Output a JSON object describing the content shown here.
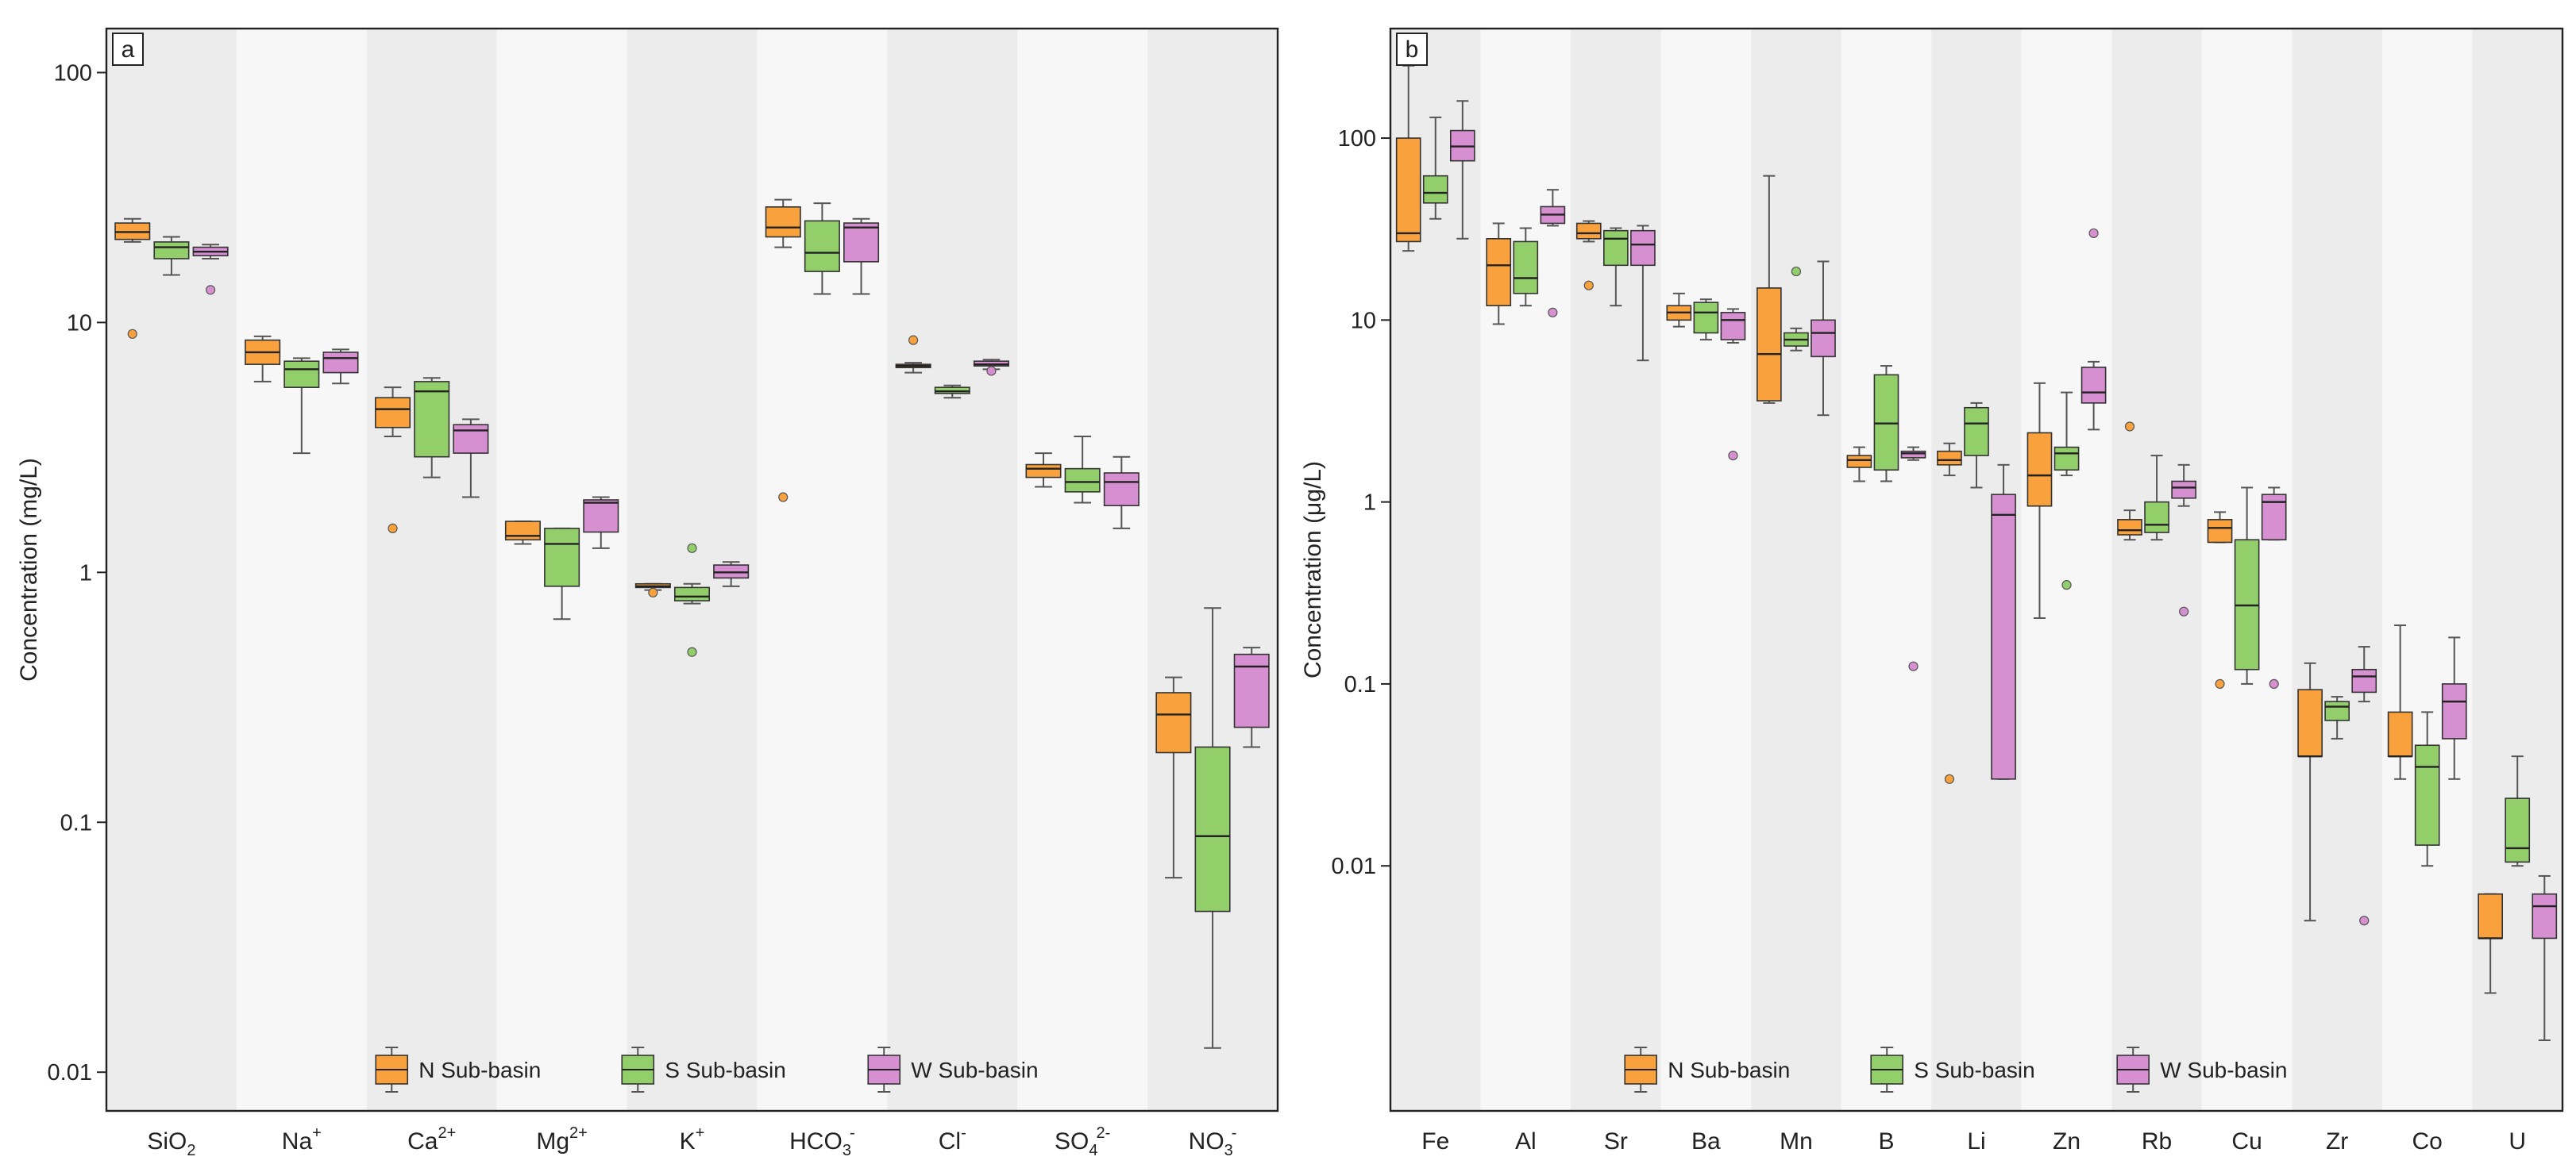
{
  "chart_data": [
    {
      "panel_label": "a",
      "type": "boxplot",
      "scale": "log",
      "ylabel": "Concentration (mg/L)",
      "ylim": [
        0.007,
        150
      ],
      "yticks": [
        {
          "value": 100,
          "label": "100"
        },
        {
          "value": 10,
          "label": "10"
        },
        {
          "value": 1,
          "label": "1"
        },
        {
          "value": 0.1,
          "label": "0.1"
        },
        {
          "value": 0.01,
          "label": "0.01"
        }
      ],
      "categories": [
        {
          "main": "SiO",
          "sub": "2",
          "sup": ""
        },
        {
          "main": "Na",
          "sub": "",
          "sup": "+"
        },
        {
          "main": "Ca",
          "sub": "",
          "sup": "2+"
        },
        {
          "main": "Mg",
          "sub": "",
          "sup": "2+"
        },
        {
          "main": "K",
          "sub": "",
          "sup": "+"
        },
        {
          "main": "HCO",
          "sub": "3",
          "sup": "-"
        },
        {
          "main": "Cl",
          "sub": "",
          "sup": "-"
        },
        {
          "main": "SO",
          "sub": "4",
          "sup": "2-"
        },
        {
          "main": "NO",
          "sub": "3",
          "sup": "-"
        }
      ],
      "series": [
        {
          "name": "N Sub-basin",
          "color": "#f9a13d",
          "boxes": [
            {
              "min": 21,
              "q1": 21.5,
              "median": 23,
              "q3": 25,
              "max": 26,
              "outliers": [
                9
              ]
            },
            {
              "min": 5.8,
              "q1": 6.8,
              "median": 7.6,
              "q3": 8.5,
              "max": 8.8,
              "outliers": []
            },
            {
              "min": 3.5,
              "q1": 3.8,
              "median": 4.5,
              "q3": 5.0,
              "max": 5.5,
              "outliers": [
                1.5
              ]
            },
            {
              "min": 1.3,
              "q1": 1.35,
              "median": 1.4,
              "q3": 1.6,
              "max": 1.6,
              "outliers": []
            },
            {
              "min": 0.85,
              "q1": 0.87,
              "median": 0.88,
              "q3": 0.9,
              "max": 0.9,
              "outliers": [
                0.83
              ]
            },
            {
              "min": 20,
              "q1": 22,
              "median": 24,
              "q3": 29,
              "max": 31,
              "outliers": [
                2
              ]
            },
            {
              "min": 6.3,
              "q1": 6.6,
              "median": 6.7,
              "q3": 6.8,
              "max": 6.9,
              "outliers": [
                8.5
              ]
            },
            {
              "min": 2.2,
              "q1": 2.4,
              "median": 2.6,
              "q3": 2.7,
              "max": 3.0,
              "outliers": []
            },
            {
              "min": 0.06,
              "q1": 0.19,
              "median": 0.27,
              "q3": 0.33,
              "max": 0.38,
              "outliers": []
            }
          ]
        },
        {
          "name": "S Sub-basin",
          "color": "#92cf6b",
          "boxes": [
            {
              "min": 15.5,
              "q1": 18,
              "median": 20,
              "q3": 21,
              "max": 22,
              "outliers": []
            },
            {
              "min": 3.0,
              "q1": 5.5,
              "median": 6.5,
              "q3": 7.0,
              "max": 7.2,
              "outliers": []
            },
            {
              "min": 2.4,
              "q1": 2.9,
              "median": 5.3,
              "q3": 5.8,
              "max": 6.0,
              "outliers": []
            },
            {
              "min": 0.65,
              "q1": 0.88,
              "median": 1.3,
              "q3": 1.5,
              "max": 1.5,
              "outliers": []
            },
            {
              "min": 0.75,
              "q1": 0.77,
              "median": 0.8,
              "q3": 0.87,
              "max": 0.9,
              "outliers": [
                1.25,
                0.48
              ]
            },
            {
              "min": 13,
              "q1": 16,
              "median": 19,
              "q3": 25.5,
              "max": 30,
              "outliers": []
            },
            {
              "min": 5.0,
              "q1": 5.2,
              "median": 5.3,
              "q3": 5.5,
              "max": 5.6,
              "outliers": []
            },
            {
              "min": 1.9,
              "q1": 2.1,
              "median": 2.3,
              "q3": 2.6,
              "max": 3.5,
              "outliers": []
            },
            {
              "min": 0.0125,
              "q1": 0.044,
              "median": 0.088,
              "q3": 0.2,
              "max": 0.72,
              "outliers": []
            }
          ]
        },
        {
          "name": "W Sub-basin",
          "color": "#d68fd0",
          "boxes": [
            {
              "min": 18,
              "q1": 18.5,
              "median": 19.2,
              "q3": 20,
              "max": 20.5,
              "outliers": [
                13.5
              ]
            },
            {
              "min": 5.7,
              "q1": 6.3,
              "median": 7.2,
              "q3": 7.6,
              "max": 7.8,
              "outliers": []
            },
            {
              "min": 2.0,
              "q1": 3.0,
              "median": 3.7,
              "q3": 3.9,
              "max": 4.1,
              "outliers": []
            },
            {
              "min": 1.25,
              "q1": 1.45,
              "median": 1.9,
              "q3": 1.95,
              "max": 2.0,
              "outliers": []
            },
            {
              "min": 0.88,
              "q1": 0.95,
              "median": 1.0,
              "q3": 1.07,
              "max": 1.1,
              "outliers": []
            },
            {
              "min": 13,
              "q1": 17.5,
              "median": 24,
              "q3": 25,
              "max": 26,
              "outliers": []
            },
            {
              "min": 6.5,
              "q1": 6.7,
              "median": 6.8,
              "q3": 7.0,
              "max": 7.1,
              "outliers": [
                6.4
              ]
            },
            {
              "min": 1.5,
              "q1": 1.85,
              "median": 2.3,
              "q3": 2.5,
              "max": 2.9,
              "outliers": []
            },
            {
              "min": 0.2,
              "q1": 0.24,
              "median": 0.42,
              "q3": 0.47,
              "max": 0.5,
              "outliers": []
            }
          ]
        }
      ]
    },
    {
      "panel_label": "b",
      "type": "boxplot",
      "scale": "log",
      "ylabel": "Concentration (μg/L)",
      "ylim": [
        0.00045,
        400
      ],
      "yticks": [
        {
          "value": 100,
          "label": "100"
        },
        {
          "value": 10,
          "label": "10"
        },
        {
          "value": 1,
          "label": "1"
        },
        {
          "value": 0.1,
          "label": "0.1"
        },
        {
          "value": 0.01,
          "label": "0.01"
        }
      ],
      "categories": [
        {
          "main": "Fe",
          "sub": "",
          "sup": ""
        },
        {
          "main": "Al",
          "sub": "",
          "sup": ""
        },
        {
          "main": "Sr",
          "sub": "",
          "sup": ""
        },
        {
          "main": "Ba",
          "sub": "",
          "sup": ""
        },
        {
          "main": "Mn",
          "sub": "",
          "sup": ""
        },
        {
          "main": "B",
          "sub": "",
          "sup": ""
        },
        {
          "main": "Li",
          "sub": "",
          "sup": ""
        },
        {
          "main": "Zn",
          "sub": "",
          "sup": ""
        },
        {
          "main": "Rb",
          "sub": "",
          "sup": ""
        },
        {
          "main": "Cu",
          "sub": "",
          "sup": ""
        },
        {
          "main": "Zr",
          "sub": "",
          "sup": ""
        },
        {
          "main": "Co",
          "sub": "",
          "sup": ""
        },
        {
          "main": "U",
          "sub": "",
          "sup": ""
        }
      ],
      "series": [
        {
          "name": "N Sub-basin",
          "color": "#f9a13d",
          "boxes": [
            {
              "min": 24,
              "q1": 27,
              "median": 30,
              "q3": 100,
              "max": 250,
              "outliers": []
            },
            {
              "min": 9.5,
              "q1": 12,
              "median": 20,
              "q3": 28,
              "max": 34,
              "outliers": []
            },
            {
              "min": 27,
              "q1": 28,
              "median": 30,
              "q3": 34,
              "max": 35,
              "outliers": [
                15.5
              ]
            },
            {
              "min": 9.2,
              "q1": 10,
              "median": 11,
              "q3": 12,
              "max": 14,
              "outliers": []
            },
            {
              "min": 3.5,
              "q1": 3.6,
              "median": 6.5,
              "q3": 15,
              "max": 62,
              "outliers": []
            },
            {
              "min": 1.3,
              "q1": 1.55,
              "median": 1.7,
              "q3": 1.8,
              "max": 2.0,
              "outliers": []
            },
            {
              "min": 1.4,
              "q1": 1.6,
              "median": 1.7,
              "q3": 1.9,
              "max": 2.1,
              "outliers": [
                0.03
              ]
            },
            {
              "min": 0.23,
              "q1": 0.95,
              "median": 1.4,
              "q3": 2.4,
              "max": 4.5,
              "outliers": []
            },
            {
              "min": 0.62,
              "q1": 0.66,
              "median": 0.7,
              "q3": 0.8,
              "max": 0.9,
              "outliers": [
                2.6
              ]
            },
            {
              "min": 0.6,
              "q1": 0.6,
              "median": 0.72,
              "q3": 0.8,
              "max": 0.88,
              "outliers": [
                0.1
              ]
            },
            {
              "min": 0.005,
              "q1": 0.04,
              "median": 0.04,
              "q3": 0.093,
              "max": 0.13,
              "outliers": []
            },
            {
              "min": 0.03,
              "q1": 0.04,
              "median": 0.04,
              "q3": 0.07,
              "max": 0.21,
              "outliers": []
            },
            {
              "min": 0.002,
              "q1": 0.004,
              "median": 0.004,
              "q3": 0.007,
              "max": 0.007,
              "outliers": []
            }
          ]
        },
        {
          "name": "S Sub-basin",
          "color": "#92cf6b",
          "boxes": [
            {
              "min": 36,
              "q1": 44,
              "median": 50,
              "q3": 62,
              "max": 130,
              "outliers": []
            },
            {
              "min": 12,
              "q1": 14,
              "median": 17,
              "q3": 27,
              "max": 32,
              "outliers": []
            },
            {
              "min": 12,
              "q1": 20,
              "median": 28,
              "q3": 31,
              "max": 32,
              "outliers": []
            },
            {
              "min": 7.8,
              "q1": 8.5,
              "median": 11,
              "q3": 12.5,
              "max": 13,
              "outliers": []
            },
            {
              "min": 6.8,
              "q1": 7.2,
              "median": 7.8,
              "q3": 8.5,
              "max": 9.0,
              "outliers": [
                18.5
              ]
            },
            {
              "min": 1.3,
              "q1": 1.5,
              "median": 2.7,
              "q3": 5.0,
              "max": 5.6,
              "outliers": []
            },
            {
              "min": 1.2,
              "q1": 1.8,
              "median": 2.7,
              "q3": 3.3,
              "max": 3.5,
              "outliers": []
            },
            {
              "min": 1.4,
              "q1": 1.5,
              "median": 1.85,
              "q3": 2.0,
              "max": 4.0,
              "outliers": [
                0.35
              ]
            },
            {
              "min": 0.62,
              "q1": 0.68,
              "median": 0.75,
              "q3": 1.0,
              "max": 1.8,
              "outliers": []
            },
            {
              "min": 0.1,
              "q1": 0.12,
              "median": 0.27,
              "q3": 0.62,
              "max": 1.2,
              "outliers": []
            },
            {
              "min": 0.05,
              "q1": 0.063,
              "median": 0.075,
              "q3": 0.08,
              "max": 0.085,
              "outliers": []
            },
            {
              "min": 0.01,
              "q1": 0.013,
              "median": 0.035,
              "q3": 0.046,
              "max": 0.07,
              "outliers": []
            },
            {
              "min": 0.01,
              "q1": 0.0105,
              "median": 0.0125,
              "q3": 0.0235,
              "max": 0.04,
              "outliers": []
            }
          ]
        },
        {
          "name": "W Sub-basin",
          "color": "#d68fd0",
          "boxes": [
            {
              "min": 28,
              "q1": 75,
              "median": 90,
              "q3": 110,
              "max": 160,
              "outliers": []
            },
            {
              "min": 33,
              "q1": 34,
              "median": 38,
              "q3": 42,
              "max": 52,
              "outliers": [
                11
              ]
            },
            {
              "min": 6,
              "q1": 20,
              "median": 26,
              "q3": 31,
              "max": 33,
              "outliers": []
            },
            {
              "min": 7.5,
              "q1": 7.8,
              "median": 10,
              "q3": 11,
              "max": 11.5,
              "outliers": [
                1.8
              ]
            },
            {
              "min": 3.0,
              "q1": 6.3,
              "median": 8.5,
              "q3": 10,
              "max": 21,
              "outliers": []
            },
            {
              "min": 1.7,
              "q1": 1.75,
              "median": 1.85,
              "q3": 1.9,
              "max": 2.0,
              "outliers": [
                0.125
              ]
            },
            {
              "min": 0.03,
              "q1": 0.03,
              "median": 0.85,
              "q3": 1.1,
              "max": 1.6,
              "outliers": []
            },
            {
              "min": 2.5,
              "q1": 3.5,
              "median": 4.0,
              "q3": 5.5,
              "max": 5.9,
              "outliers": [
                30
              ]
            },
            {
              "min": 0.95,
              "q1": 1.05,
              "median": 1.2,
              "q3": 1.3,
              "max": 1.6,
              "outliers": [
                0.25
              ]
            },
            {
              "min": 0.62,
              "q1": 0.62,
              "median": 1.0,
              "q3": 1.1,
              "max": 1.2,
              "outliers": [
                0.1
              ]
            },
            {
              "min": 0.08,
              "q1": 0.09,
              "median": 0.11,
              "q3": 0.12,
              "max": 0.16,
              "outliers": [
                0.005
              ]
            },
            {
              "min": 0.03,
              "q1": 0.05,
              "median": 0.08,
              "q3": 0.1,
              "max": 0.18,
              "outliers": []
            },
            {
              "min": 0.0011,
              "q1": 0.004,
              "median": 0.006,
              "q3": 0.007,
              "max": 0.0088,
              "outliers": []
            }
          ]
        }
      ]
    }
  ]
}
